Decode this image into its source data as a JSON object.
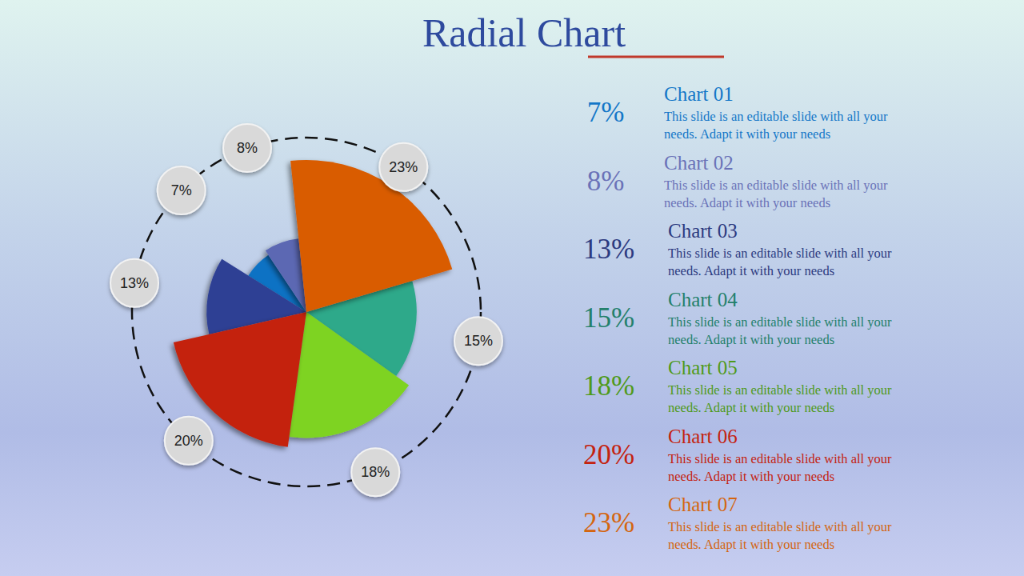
{
  "chart_data": {
    "type": "pie",
    "title": "Radial Chart",
    "categories": [
      "Chart 01",
      "Chart 02",
      "Chart 03",
      "Chart 04",
      "Chart 05",
      "Chart 06",
      "Chart 07"
    ],
    "values": [
      7,
      8,
      13,
      15,
      18,
      20,
      23
    ],
    "value_labels": [
      "7%",
      "8%",
      "13%",
      "15%",
      "18%",
      "20%",
      "23%"
    ],
    "descriptions": [
      "This slide is an editable slide with all your needs. Adapt it with your needs",
      "This slide is an editable slide with all your needs. Adapt it with your needs",
      "This slide is an editable slide with all your needs. Adapt it with your needs",
      "This slide is an editable slide with all your needs. Adapt it with your needs",
      "This slide is an editable slide with all your needs. Adapt it with your needs",
      "This slide is an editable slide with all your needs. Adapt it with your needs",
      "This slide is an editable slide with all your needs. Adapt it with your needs"
    ],
    "colors": [
      "#0f72c4",
      "#5b67b3",
      "#2e3f94",
      "#2fa98a",
      "#7ed321",
      "#c4220f",
      "#d95b00"
    ],
    "data_labels": true
  }
}
